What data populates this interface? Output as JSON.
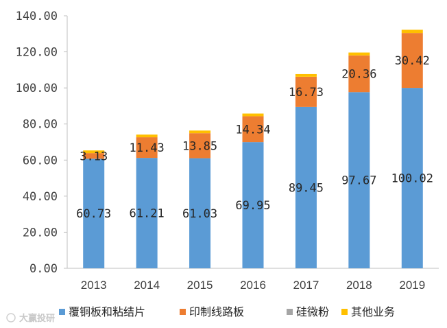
{
  "chart_data": {
    "type": "bar",
    "stacked": true,
    "categories": [
      "2013",
      "2014",
      "2015",
      "2016",
      "2017",
      "2018",
      "2019"
    ],
    "series": [
      {
        "name": "覆铜板和粘结片",
        "color": "#5b9bd5",
        "values": [
          60.73,
          61.21,
          61.03,
          69.95,
          89.45,
          97.67,
          100.02
        ],
        "labels": [
          "60.73",
          "61.21",
          "61.03",
          "69.95",
          "89.45",
          "97.67",
          "100.02"
        ]
      },
      {
        "name": "印制线路板",
        "color": "#ed7d31",
        "values": [
          3.13,
          11.43,
          13.85,
          14.34,
          16.73,
          20.36,
          30.42
        ],
        "labels": [
          "3.13",
          "11.43",
          "13.85",
          "14.34",
          "16.73",
          "20.36",
          "30.42"
        ]
      },
      {
        "name": "硅微粉",
        "color": "#a5a5a5",
        "values": [
          0,
          0,
          0,
          0,
          0,
          0,
          0
        ],
        "labels": []
      },
      {
        "name": "其他业务",
        "color": "#ffc000",
        "values": [
          1.5,
          1.5,
          1.5,
          1.5,
          1.5,
          1.6,
          1.8
        ],
        "labels": []
      }
    ],
    "y_ticks": [
      "0.00",
      "20.00",
      "40.00",
      "60.00",
      "80.00",
      "100.00",
      "120.00",
      "140.00"
    ],
    "ylim": [
      0,
      140
    ],
    "grid": false,
    "legend": "bottom",
    "title": "",
    "xlabel": "",
    "ylabel": ""
  },
  "watermark": "大赢投研"
}
